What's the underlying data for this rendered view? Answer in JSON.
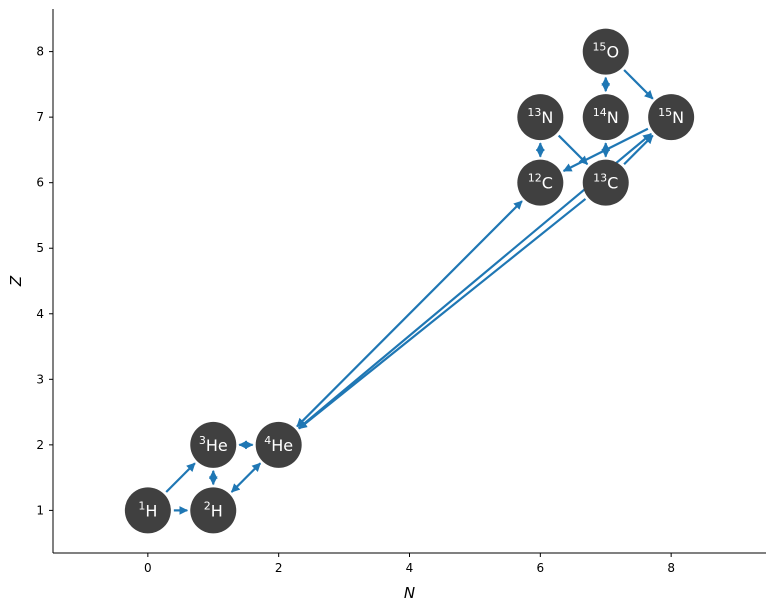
{
  "chart_data": {
    "type": "scatter",
    "title": "",
    "xlabel": "N",
    "ylabel": "Z",
    "xlim": [
      -1.45,
      9.45
    ],
    "ylim": [
      0.35,
      8.65
    ],
    "xticks": [
      0,
      2,
      4,
      6,
      8
    ],
    "yticks": [
      1,
      2,
      3,
      4,
      5,
      6,
      7,
      8
    ],
    "grid": false,
    "node_color": "#404040",
    "edge_color": "#1f77b4",
    "nuclei": [
      {
        "id": "1H",
        "mass": "1",
        "symbol": "H",
        "n": 0,
        "z": 1
      },
      {
        "id": "2H",
        "mass": "2",
        "symbol": "H",
        "n": 1,
        "z": 1
      },
      {
        "id": "3He",
        "mass": "3",
        "symbol": "He",
        "n": 1,
        "z": 2
      },
      {
        "id": "4He",
        "mass": "4",
        "symbol": "He",
        "n": 2,
        "z": 2
      },
      {
        "id": "12C",
        "mass": "12",
        "symbol": "C",
        "n": 6,
        "z": 6
      },
      {
        "id": "13C",
        "mass": "13",
        "symbol": "C",
        "n": 7,
        "z": 6
      },
      {
        "id": "13N",
        "mass": "13",
        "symbol": "N",
        "n": 6,
        "z": 7
      },
      {
        "id": "14N",
        "mass": "14",
        "symbol": "N",
        "n": 7,
        "z": 7
      },
      {
        "id": "15N",
        "mass": "15",
        "symbol": "N",
        "n": 8,
        "z": 7
      },
      {
        "id": "15O",
        "mass": "15",
        "symbol": "O",
        "n": 7,
        "z": 8
      }
    ],
    "links": [
      {
        "from": "1H",
        "to": "2H",
        "both": false
      },
      {
        "from": "1H",
        "to": "3He",
        "both": false
      },
      {
        "from": "2H",
        "to": "3He",
        "both": true
      },
      {
        "from": "2H",
        "to": "4He",
        "both": true
      },
      {
        "from": "3He",
        "to": "4He",
        "both": true
      },
      {
        "from": "12C",
        "to": "4He",
        "both": true
      },
      {
        "from": "13C",
        "to": "4He",
        "both": false
      },
      {
        "from": "4He",
        "to": "15N",
        "both": false
      },
      {
        "from": "12C",
        "to": "13N",
        "both": true
      },
      {
        "from": "13N",
        "to": "13C",
        "both": false
      },
      {
        "from": "13C",
        "to": "14N",
        "both": true
      },
      {
        "from": "14N",
        "to": "15O",
        "both": true
      },
      {
        "from": "15O",
        "to": "15N",
        "both": false
      },
      {
        "from": "15N",
        "to": "12C",
        "both": false
      },
      {
        "from": "13C",
        "to": "15N",
        "both": false
      }
    ]
  }
}
